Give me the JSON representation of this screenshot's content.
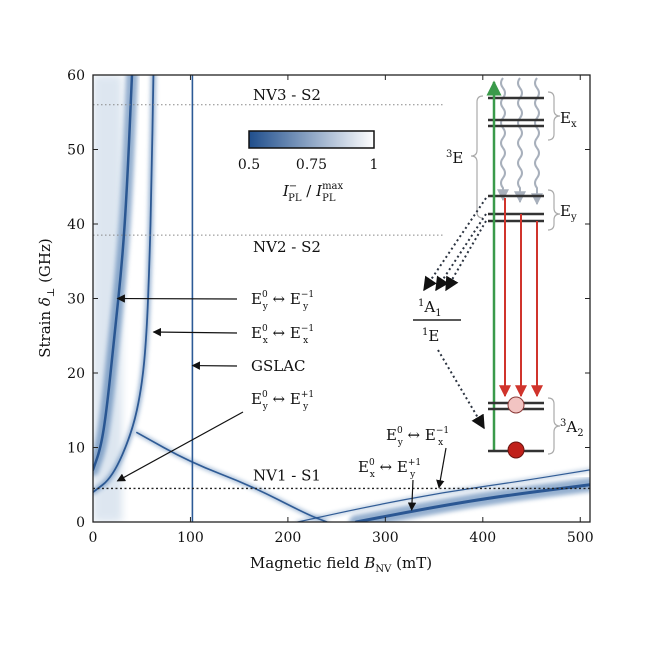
{
  "chart_data": {
    "type": "heatmap",
    "xlabel": {
      "text": "Magnetic field ",
      "var": "B",
      "sub": "NV",
      "unit": " (mT)"
    },
    "ylabel": {
      "text": "Strain ",
      "var": "δ",
      "sub": "⊥",
      "unit": " (GHz)"
    },
    "xlim": [
      0,
      510
    ],
    "ylim": [
      0,
      60
    ],
    "xticks": [
      0,
      100,
      200,
      300,
      400,
      500
    ],
    "yticks": [
      0,
      10,
      20,
      30,
      40,
      50,
      60
    ],
    "colorbar": {
      "ticks": [
        0.5,
        0.75,
        1
      ],
      "tick_labels": [
        "0.5",
        "0.75",
        "1"
      ],
      "low_color": "#1f4e8c",
      "high_color": "#ffffff",
      "label": {
        "base": "I",
        "sup": "−",
        "sub": "PL",
        "sep": " / ",
        "base2": "I",
        "sup2": "max",
        "sub2": "PL"
      }
    },
    "reference_lines": [
      {
        "label": "NV3 - S2",
        "y": 56
      },
      {
        "label": "NV2 - S2",
        "y": 38.5
      },
      {
        "label": "NV1 - S1",
        "y": 4.5
      }
    ],
    "features": [
      {
        "name": "GSLAC",
        "type": "vertical",
        "x": 102
      },
      {
        "name": "transition-1",
        "type": "curve",
        "points": [
          [
            40,
            60
          ],
          [
            35,
            45
          ],
          [
            30,
            35
          ],
          [
            22,
            25
          ],
          [
            14,
            15
          ],
          [
            8,
            10
          ],
          [
            0,
            7
          ]
        ]
      },
      {
        "name": "transition-2",
        "type": "curve",
        "points": [
          [
            62,
            60
          ],
          [
            60,
            45
          ],
          [
            58,
            35
          ],
          [
            55,
            25
          ],
          [
            50,
            18
          ],
          [
            40,
            12
          ],
          [
            20,
            6
          ],
          [
            0,
            4
          ]
        ]
      },
      {
        "name": "transition-3",
        "type": "curve",
        "points": [
          [
            45,
            12
          ],
          [
            100,
            8
          ],
          [
            160,
            5
          ],
          [
            220,
            1
          ],
          [
            240,
            0
          ]
        ]
      },
      {
        "name": "transition-4",
        "type": "curve",
        "points": [
          [
            210,
            0
          ],
          [
            280,
            2
          ],
          [
            360,
            4
          ],
          [
            440,
            5.5
          ],
          [
            510,
            7
          ]
        ]
      },
      {
        "name": "transition-5",
        "type": "curve",
        "points": [
          [
            270,
            0
          ],
          [
            350,
            2
          ],
          [
            420,
            3.5
          ],
          [
            510,
            5
          ]
        ]
      }
    ],
    "annotations": [
      {
        "id": "a1",
        "lhs": "E",
        "lhs_sup": "0",
        "lhs_sub": "y",
        "rhs": "E",
        "rhs_sup": "−1",
        "rhs_sub": "y",
        "arrow_to": [
          25,
          30
        ]
      },
      {
        "id": "a2",
        "lhs": "E",
        "lhs_sup": "0",
        "lhs_sub": "x",
        "rhs": "E",
        "rhs_sup": "−1",
        "rhs_sub": "x",
        "arrow_to": [
          62,
          25.5
        ]
      },
      {
        "id": "a3",
        "text": "GSLAC",
        "arrow_to": [
          102,
          21
        ]
      },
      {
        "id": "a4",
        "lhs": "E",
        "lhs_sup": "0",
        "lhs_sub": "y",
        "rhs": "E",
        "rhs_sup": "+1",
        "rhs_sub": "y",
        "arrow_to": [
          25,
          5.5
        ]
      },
      {
        "id": "a5",
        "lhs": "E",
        "lhs_sup": "0",
        "lhs_sub": "y",
        "rhs": "E",
        "rhs_sup": "−1",
        "rhs_sub": "x",
        "arrow_to": [
          355,
          4.6
        ]
      },
      {
        "id": "a6",
        "lhs": "E",
        "lhs_sup": "0",
        "lhs_sub": "x",
        "rhs": "E",
        "rhs_sup": "+1",
        "rhs_sub": "y",
        "arrow_to": [
          327,
          1.6
        ]
      }
    ],
    "level_diagram": {
      "excited_label": {
        "sup": "3",
        "base": "E"
      },
      "ex_label": {
        "base": "E",
        "sub": "x"
      },
      "ey_label": {
        "base": "E",
        "sub": "y"
      },
      "singlet_upper": {
        "sup": "1",
        "base": "A",
        "sub": "1"
      },
      "singlet_lower": {
        "sup": "1",
        "base": "E"
      },
      "ground_label": {
        "sup": "3",
        "base": "A",
        "sub": "2"
      },
      "colors": {
        "pump": "#3a9a4a",
        "emission": "#d0342c",
        "decay": "#a8b0bc",
        "levels": "#333333",
        "ms0_dot": "#c0201a",
        "ms1_dot": "#f2c4c2"
      }
    }
  }
}
